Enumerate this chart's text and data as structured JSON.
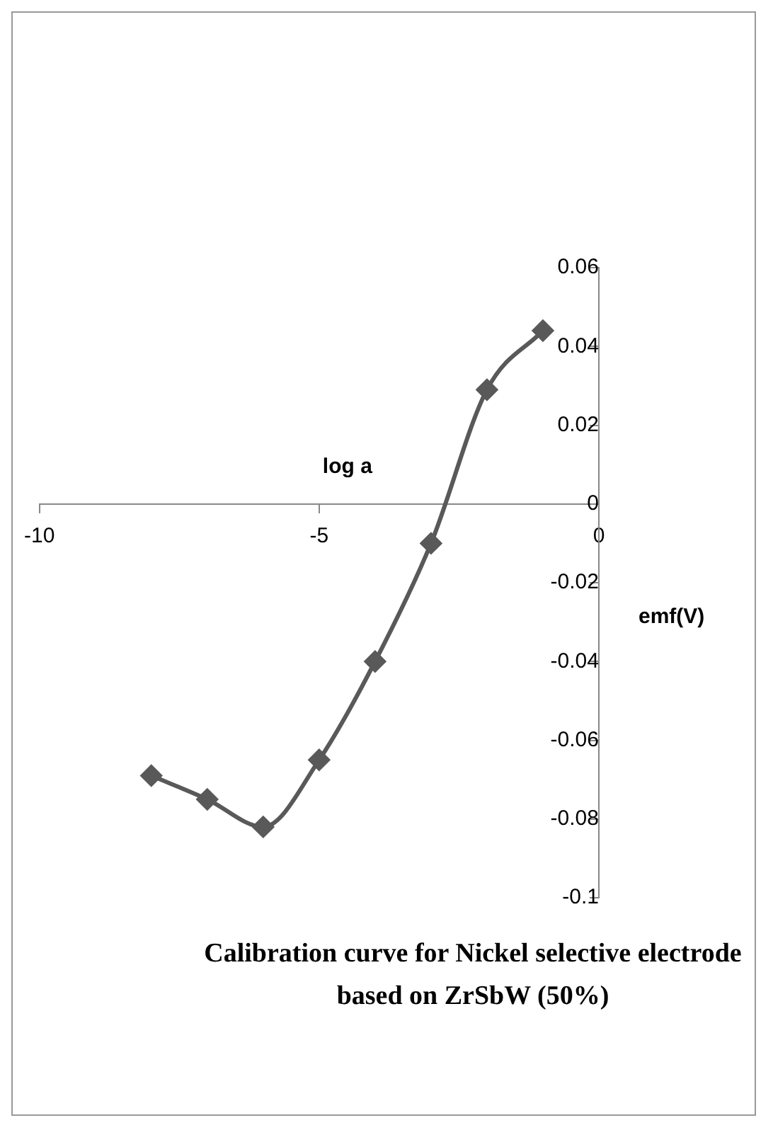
{
  "chart_data": {
    "type": "line",
    "title": "Calibration curve for Nickel selective electrode based on ZrSbW (50%)",
    "xlabel": "log a",
    "ylabel": "emf(V)",
    "x": [
      -8,
      -7,
      -6,
      -5,
      -4,
      -3,
      -2,
      -1
    ],
    "series": [
      {
        "color": "#595959",
        "values": [
          -0.069,
          -0.075,
          -0.082,
          -0.065,
          -0.04,
          -0.01,
          0.029,
          0.044
        ]
      }
    ],
    "xlim": [
      -10,
      0
    ],
    "xticks": [
      -10,
      -5,
      0
    ],
    "ylim": [
      -0.1,
      0.06
    ],
    "yticks": [
      -0.1,
      -0.08,
      -0.06,
      -0.04,
      -0.02,
      0,
      0.02,
      0.04,
      0.06
    ],
    "grid": false,
    "legend": false,
    "marker": "diamond",
    "line_style": "solid"
  }
}
